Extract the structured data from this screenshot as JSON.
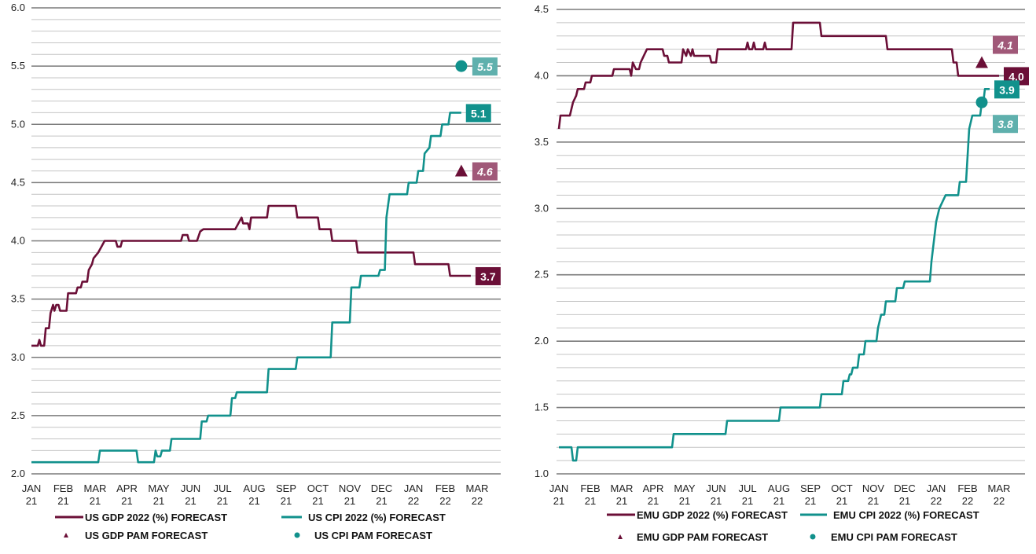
{
  "colors": {
    "gdp": "#6b0f37",
    "gdp_pam_box": "#a05878",
    "cpi": "#11918c",
    "cpi_pam_box": "#5fb0ad",
    "major_grid": "#7a7a7a",
    "minor_grid": "#c4c4c4"
  },
  "chart_data": [
    {
      "type": "line",
      "region": "US",
      "title": "",
      "ylim": [
        2.0,
        6.0
      ],
      "yticks": [
        "2.0",
        "2.5",
        "3.0",
        "3.5",
        "4.0",
        "4.5",
        "5.0",
        "5.5",
        "6.0"
      ],
      "x_tick_labels": [
        [
          "JAN",
          "21"
        ],
        [
          "FEB",
          "21"
        ],
        [
          "MAR",
          "21"
        ],
        [
          "APR",
          "21"
        ],
        [
          "MAY",
          "21"
        ],
        [
          "JUN",
          "21"
        ],
        [
          "JUL",
          "21"
        ],
        [
          "AUG",
          "21"
        ],
        [
          "SEP",
          "21"
        ],
        [
          "OCT",
          "21"
        ],
        [
          "NOV",
          "21"
        ],
        [
          "DEC",
          "21"
        ],
        [
          "JAN",
          "22"
        ],
        [
          "FEB",
          "22"
        ],
        [
          "MAR",
          "22"
        ]
      ],
      "series": [
        {
          "name": "US GDP 2022 (%) FORECAST",
          "color_key": "gdp",
          "end_label": "3.7",
          "points": [
            [
              0.0,
              3.1
            ],
            [
              0.2,
              3.1
            ],
            [
              0.25,
              3.15
            ],
            [
              0.3,
              3.1
            ],
            [
              0.4,
              3.1
            ],
            [
              0.45,
              3.25
            ],
            [
              0.55,
              3.25
            ],
            [
              0.6,
              3.38
            ],
            [
              0.68,
              3.45
            ],
            [
              0.72,
              3.4
            ],
            [
              0.78,
              3.45
            ],
            [
              0.85,
              3.45
            ],
            [
              0.9,
              3.4
            ],
            [
              1.1,
              3.4
            ],
            [
              1.15,
              3.55
            ],
            [
              1.4,
              3.55
            ],
            [
              1.45,
              3.6
            ],
            [
              1.55,
              3.6
            ],
            [
              1.6,
              3.65
            ],
            [
              1.75,
              3.65
            ],
            [
              1.8,
              3.75
            ],
            [
              1.9,
              3.8
            ],
            [
              1.95,
              3.85
            ],
            [
              2.1,
              3.9
            ],
            [
              2.2,
              3.95
            ],
            [
              2.3,
              4.0
            ],
            [
              2.65,
              4.0
            ],
            [
              2.7,
              3.95
            ],
            [
              2.8,
              3.95
            ],
            [
              2.85,
              4.0
            ],
            [
              4.7,
              4.0
            ],
            [
              4.75,
              4.05
            ],
            [
              4.9,
              4.05
            ],
            [
              4.95,
              4.0
            ],
            [
              5.2,
              4.0
            ],
            [
              5.3,
              4.08
            ],
            [
              5.4,
              4.1
            ],
            [
              6.4,
              4.1
            ],
            [
              6.5,
              4.15
            ],
            [
              6.6,
              4.2
            ],
            [
              6.65,
              4.15
            ],
            [
              6.8,
              4.15
            ],
            [
              6.85,
              4.1
            ],
            [
              6.9,
              4.2
            ],
            [
              7.4,
              4.2
            ],
            [
              7.45,
              4.3
            ],
            [
              8.3,
              4.3
            ],
            [
              8.35,
              4.2
            ],
            [
              9.0,
              4.2
            ],
            [
              9.05,
              4.1
            ],
            [
              9.4,
              4.1
            ],
            [
              9.45,
              4.0
            ],
            [
              10.2,
              4.0
            ],
            [
              10.25,
              3.9
            ],
            [
              12.0,
              3.9
            ],
            [
              12.05,
              3.8
            ],
            [
              13.1,
              3.8
            ],
            [
              13.15,
              3.7
            ],
            [
              13.8,
              3.7
            ]
          ]
        },
        {
          "name": "US CPI 2022 (%) FORECAST",
          "color_key": "cpi",
          "end_label": "5.1",
          "points": [
            [
              0.0,
              2.1
            ],
            [
              2.1,
              2.1
            ],
            [
              2.15,
              2.2
            ],
            [
              3.3,
              2.2
            ],
            [
              3.35,
              2.1
            ],
            [
              3.85,
              2.1
            ],
            [
              3.9,
              2.2
            ],
            [
              3.95,
              2.15
            ],
            [
              4.05,
              2.15
            ],
            [
              4.1,
              2.2
            ],
            [
              4.35,
              2.2
            ],
            [
              4.4,
              2.3
            ],
            [
              5.3,
              2.3
            ],
            [
              5.35,
              2.45
            ],
            [
              5.5,
              2.45
            ],
            [
              5.55,
              2.5
            ],
            [
              6.25,
              2.5
            ],
            [
              6.3,
              2.65
            ],
            [
              6.4,
              2.65
            ],
            [
              6.45,
              2.7
            ],
            [
              7.4,
              2.7
            ],
            [
              7.45,
              2.9
            ],
            [
              8.3,
              2.9
            ],
            [
              8.35,
              3.0
            ],
            [
              9.4,
              3.0
            ],
            [
              9.45,
              3.3
            ],
            [
              10.0,
              3.3
            ],
            [
              10.05,
              3.6
            ],
            [
              10.3,
              3.6
            ],
            [
              10.35,
              3.7
            ],
            [
              10.9,
              3.7
            ],
            [
              10.95,
              3.75
            ],
            [
              11.1,
              3.75
            ],
            [
              11.15,
              4.2
            ],
            [
              11.25,
              4.4
            ],
            [
              11.8,
              4.4
            ],
            [
              11.85,
              4.5
            ],
            [
              12.1,
              4.5
            ],
            [
              12.15,
              4.6
            ],
            [
              12.3,
              4.6
            ],
            [
              12.35,
              4.75
            ],
            [
              12.5,
              4.8
            ],
            [
              12.55,
              4.9
            ],
            [
              12.85,
              4.9
            ],
            [
              12.9,
              5.0
            ],
            [
              13.1,
              5.0
            ],
            [
              13.15,
              5.1
            ],
            [
              13.5,
              5.1
            ]
          ]
        }
      ],
      "pam": [
        {
          "name": "US GDP PAM FORECAST",
          "marker": "triangle",
          "color_key": "gdp",
          "x": 13.8,
          "value": 4.6,
          "label": "4.6"
        },
        {
          "name": "US CPI PAM FORECAST",
          "marker": "circle",
          "color_key": "cpi",
          "x": 13.8,
          "value": 5.5,
          "label": "5.5"
        }
      ]
    },
    {
      "type": "line",
      "region": "EMU",
      "title": "",
      "ylim": [
        1.0,
        4.5
      ],
      "yticks": [
        "1.0",
        "1.5",
        "2.0",
        "2.5",
        "3.0",
        "3.5",
        "4.0",
        "4.5"
      ],
      "x_tick_labels": [
        [
          "JAN",
          "21"
        ],
        [
          "FEB",
          "21"
        ],
        [
          "MAR",
          "21"
        ],
        [
          "APR",
          "21"
        ],
        [
          "MAY",
          "21"
        ],
        [
          "JUN",
          "21"
        ],
        [
          "JUL",
          "21"
        ],
        [
          "AUG",
          "21"
        ],
        [
          "SEP",
          "21"
        ],
        [
          "OCT",
          "21"
        ],
        [
          "NOV",
          "21"
        ],
        [
          "DEC",
          "21"
        ],
        [
          "JAN",
          "22"
        ],
        [
          "FEB",
          "22"
        ],
        [
          "MAR",
          "22"
        ]
      ],
      "series": [
        {
          "name": "EMU GDP 2022 (%) FORECAST",
          "color_key": "gdp",
          "end_label": "4.0",
          "points": [
            [
              0.0,
              3.6
            ],
            [
              0.05,
              3.7
            ],
            [
              0.35,
              3.7
            ],
            [
              0.4,
              3.75
            ],
            [
              0.45,
              3.8
            ],
            [
              0.55,
              3.85
            ],
            [
              0.6,
              3.9
            ],
            [
              0.8,
              3.9
            ],
            [
              0.85,
              3.95
            ],
            [
              1.0,
              3.95
            ],
            [
              1.05,
              4.0
            ],
            [
              1.7,
              4.0
            ],
            [
              1.75,
              4.05
            ],
            [
              2.25,
              4.05
            ],
            [
              2.3,
              4.0
            ],
            [
              2.35,
              4.1
            ],
            [
              2.45,
              4.05
            ],
            [
              2.55,
              4.05
            ],
            [
              2.6,
              4.1
            ],
            [
              2.7,
              4.15
            ],
            [
              2.8,
              4.2
            ],
            [
              3.3,
              4.2
            ],
            [
              3.35,
              4.15
            ],
            [
              3.45,
              4.15
            ],
            [
              3.5,
              4.1
            ],
            [
              3.9,
              4.1
            ],
            [
              3.95,
              4.2
            ],
            [
              4.05,
              4.15
            ],
            [
              4.1,
              4.2
            ],
            [
              4.2,
              4.15
            ],
            [
              4.25,
              4.2
            ],
            [
              4.3,
              4.15
            ],
            [
              4.8,
              4.15
            ],
            [
              4.85,
              4.1
            ],
            [
              5.0,
              4.1
            ],
            [
              5.05,
              4.2
            ],
            [
              5.95,
              4.2
            ],
            [
              6.0,
              4.25
            ],
            [
              6.05,
              4.2
            ],
            [
              6.15,
              4.2
            ],
            [
              6.2,
              4.25
            ],
            [
              6.25,
              4.2
            ],
            [
              6.5,
              4.2
            ],
            [
              6.55,
              4.25
            ],
            [
              6.6,
              4.2
            ],
            [
              7.4,
              4.2
            ],
            [
              7.45,
              4.4
            ],
            [
              8.3,
              4.4
            ],
            [
              8.35,
              4.3
            ],
            [
              10.4,
              4.3
            ],
            [
              10.45,
              4.2
            ],
            [
              12.5,
              4.2
            ],
            [
              12.55,
              4.1
            ],
            [
              12.65,
              4.1
            ],
            [
              12.7,
              4.0
            ],
            [
              14.0,
              4.0
            ]
          ]
        },
        {
          "name": "EMU CPI 2022 (%) FORECAST",
          "color_key": "cpi",
          "end_label": "3.9",
          "points": [
            [
              0.0,
              1.2
            ],
            [
              0.4,
              1.2
            ],
            [
              0.45,
              1.1
            ],
            [
              0.55,
              1.1
            ],
            [
              0.6,
              1.2
            ],
            [
              3.6,
              1.2
            ],
            [
              3.65,
              1.3
            ],
            [
              5.3,
              1.3
            ],
            [
              5.35,
              1.4
            ],
            [
              7.0,
              1.4
            ],
            [
              7.05,
              1.5
            ],
            [
              8.3,
              1.5
            ],
            [
              8.35,
              1.6
            ],
            [
              9.0,
              1.6
            ],
            [
              9.05,
              1.7
            ],
            [
              9.2,
              1.7
            ],
            [
              9.25,
              1.75
            ],
            [
              9.3,
              1.75
            ],
            [
              9.35,
              1.8
            ],
            [
              9.5,
              1.8
            ],
            [
              9.55,
              1.9
            ],
            [
              9.7,
              1.9
            ],
            [
              9.75,
              2.0
            ],
            [
              10.1,
              2.0
            ],
            [
              10.15,
              2.1
            ],
            [
              10.2,
              2.15
            ],
            [
              10.25,
              2.2
            ],
            [
              10.35,
              2.2
            ],
            [
              10.4,
              2.3
            ],
            [
              10.7,
              2.3
            ],
            [
              10.75,
              2.4
            ],
            [
              10.95,
              2.4
            ],
            [
              11.0,
              2.45
            ],
            [
              11.8,
              2.45
            ],
            [
              11.85,
              2.6
            ],
            [
              11.9,
              2.7
            ],
            [
              11.95,
              2.8
            ],
            [
              12.0,
              2.9
            ],
            [
              12.1,
              3.0
            ],
            [
              12.3,
              3.1
            ],
            [
              12.7,
              3.1
            ],
            [
              12.75,
              3.2
            ],
            [
              12.95,
              3.2
            ],
            [
              13.0,
              3.4
            ],
            [
              13.05,
              3.6
            ],
            [
              13.15,
              3.7
            ],
            [
              13.4,
              3.7
            ],
            [
              13.45,
              3.8
            ],
            [
              13.5,
              3.8
            ],
            [
              13.55,
              3.9
            ],
            [
              13.7,
              3.9
            ]
          ]
        }
      ],
      "pam": [
        {
          "name": "EMU GDP PAM FORECAST",
          "marker": "triangle",
          "color_key": "gdp",
          "x": 13.75,
          "value": 4.1,
          "label": "4.1"
        },
        {
          "name": "EMU CPI PAM FORECAST",
          "marker": "circle",
          "color_key": "cpi",
          "x": 13.75,
          "value": 3.8,
          "label": "3.8"
        }
      ]
    }
  ]
}
